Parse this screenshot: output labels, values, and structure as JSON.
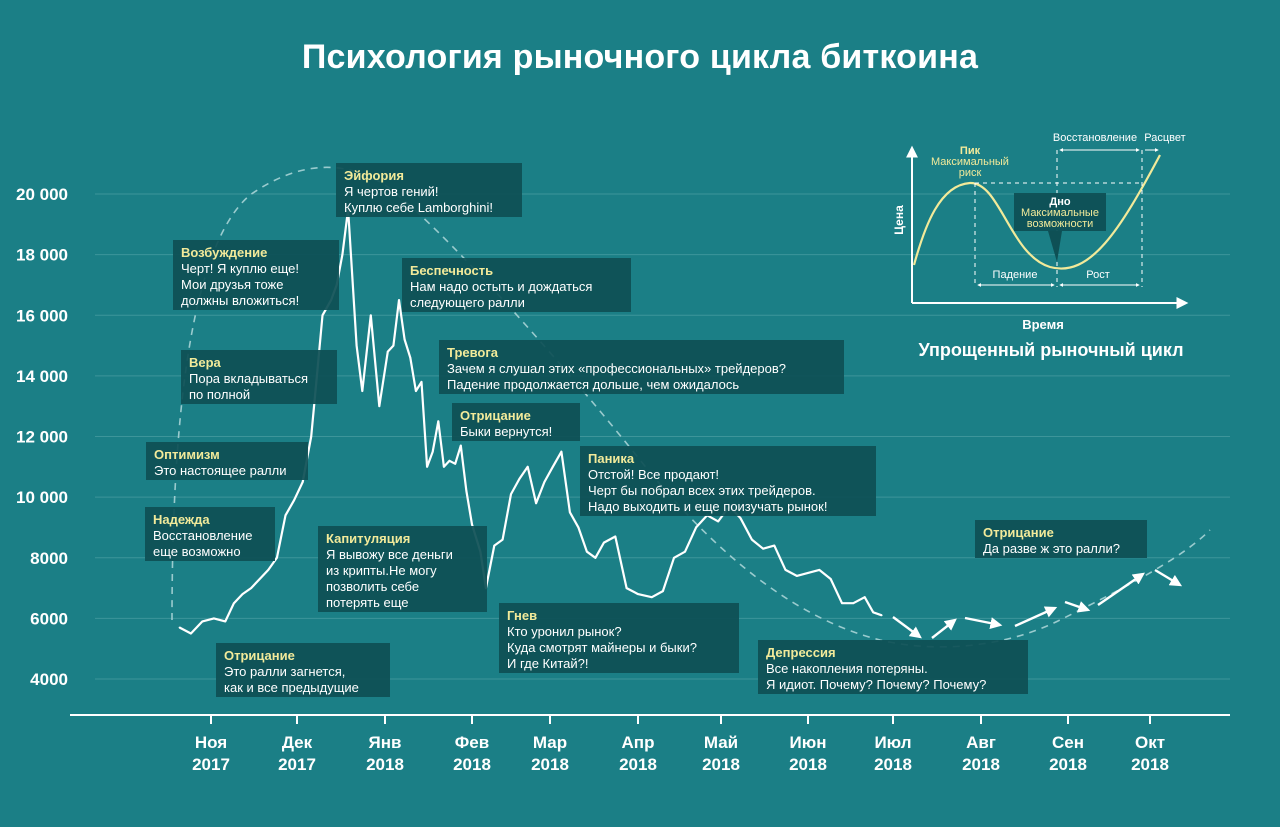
{
  "title": "Психология рыночного цикла биткоина",
  "chart_data": {
    "type": "line",
    "title": "Психология рыночного цикла биткоина",
    "xlabel": "",
    "ylabel": "",
    "y_ticks": [
      "4000",
      "6000",
      "8000",
      "10 000",
      "12 000",
      "14 000",
      "16 000",
      "18 000",
      "20 000"
    ],
    "y_tick_values": [
      4000,
      6000,
      8000,
      10000,
      12000,
      14000,
      16000,
      18000,
      20000
    ],
    "ylim": [
      3000,
      21000
    ],
    "months": [
      {
        "name": "Ноя",
        "year": "2017"
      },
      {
        "name": "Дек",
        "year": "2017"
      },
      {
        "name": "Янв",
        "year": "2018"
      },
      {
        "name": "Фев",
        "year": "2018"
      },
      {
        "name": "Мар",
        "year": "2018"
      },
      {
        "name": "Апр",
        "year": "2018"
      },
      {
        "name": "Май",
        "year": "2018"
      },
      {
        "name": "Июн",
        "year": "2018"
      },
      {
        "name": "Июл",
        "year": "2018"
      },
      {
        "name": "Авг",
        "year": "2018"
      },
      {
        "name": "Сен",
        "year": "2018"
      },
      {
        "name": "Окт",
        "year": "2018"
      }
    ],
    "grid": true,
    "series": [
      {
        "x": [
          "2017-10-21",
          "2017-10-25",
          "2017-10-29",
          "2017-11-02",
          "2017-11-06",
          "2017-11-09",
          "2017-11-12",
          "2017-11-15",
          "2017-11-18",
          "2017-11-21",
          "2017-11-24",
          "2017-11-27",
          "2017-11-30",
          "2017-12-03",
          "2017-12-06",
          "2017-12-08",
          "2017-12-10",
          "2017-12-13",
          "2017-12-15",
          "2017-12-17",
          "2017-12-19",
          "2017-12-22",
          "2017-12-24",
          "2017-12-27",
          "2017-12-30",
          "2018-01-02",
          "2018-01-04",
          "2018-01-06",
          "2018-01-08",
          "2018-01-10",
          "2018-01-12",
          "2018-01-14",
          "2018-01-16",
          "2018-01-18",
          "2018-01-20",
          "2018-01-22",
          "2018-01-24",
          "2018-01-26",
          "2018-01-28",
          "2018-01-30",
          "2018-02-01",
          "2018-02-04",
          "2018-02-06",
          "2018-02-09",
          "2018-02-12",
          "2018-02-15",
          "2018-02-18",
          "2018-02-21",
          "2018-02-24",
          "2018-02-27",
          "2018-03-02",
          "2018-03-05",
          "2018-03-08",
          "2018-03-11",
          "2018-03-14",
          "2018-03-17",
          "2018-03-20",
          "2018-03-24",
          "2018-03-28",
          "2018-04-01",
          "2018-04-06",
          "2018-04-10",
          "2018-04-14",
          "2018-04-18",
          "2018-04-22",
          "2018-04-26",
          "2018-04-30",
          "2018-05-04",
          "2018-05-08",
          "2018-05-12",
          "2018-05-16",
          "2018-05-20",
          "2018-05-24",
          "2018-05-28",
          "2018-06-01",
          "2018-06-05",
          "2018-06-09",
          "2018-06-13",
          "2018-06-17",
          "2018-06-21",
          "2018-06-24",
          "2018-06-27"
        ],
        "values": [
          5700,
          5500,
          5900,
          6000,
          5900,
          6500,
          6800,
          7000,
          7300,
          7600,
          8000,
          9400,
          9900,
          10500,
          12000,
          14000,
          16000,
          16500,
          17000,
          18000,
          19500,
          15000,
          13500,
          16000,
          13000,
          14800,
          15000,
          16500,
          15200,
          14600,
          13500,
          13800,
          11000,
          11500,
          12500,
          11000,
          11200,
          11100,
          11700,
          10200,
          9100,
          8200,
          7000,
          8400,
          8600,
          10100,
          10600,
          11000,
          9800,
          10500,
          11000,
          11500,
          9500,
          9000,
          8200,
          8000,
          8500,
          8700,
          7000,
          6800,
          6700,
          6900,
          8000,
          8200,
          9000,
          9400,
          9200,
          9700,
          9300,
          8600,
          8300,
          8400,
          7600,
          7400,
          7500,
          7600,
          7300,
          6500,
          6500,
          6700,
          6200,
          6100
        ]
      }
    ],
    "annotations": [
      {
        "title": "Надежда",
        "lines": [
          "Восстановление",
          "еще возможно"
        ]
      },
      {
        "title": "Отрицание",
        "lines": [
          "Это ралли загнется,",
          "как и все предыдущие"
        ]
      },
      {
        "title": "Оптимизм",
        "lines": [
          "Это настоящее ралли"
        ]
      },
      {
        "title": "Вера",
        "lines": [
          "Пора вкладываться",
          "по полной"
        ]
      },
      {
        "title": "Возбуждение",
        "lines": [
          "Черт! Я куплю еще!",
          "Мои друзья тоже",
          "должны вложиться!"
        ]
      },
      {
        "title": "Эйфория",
        "lines": [
          "Я чертов гений!",
          "Куплю себе Lamborghini!"
        ]
      },
      {
        "title": "Беспечность",
        "lines": [
          "Нам надо остыть и дождаться",
          "следующего ралли"
        ]
      },
      {
        "title": "Тревога",
        "lines": [
          "Зачем я слушал этих «профессиональных» трейдеров?",
          "Падение продолжается дольше, чем ожидалось"
        ]
      },
      {
        "title": "Отрицание",
        "lines": [
          "Быки вернутся!"
        ]
      },
      {
        "title": "Капитуляция",
        "lines": [
          "Я вывожу все деньги",
          "из крипты.Не могу",
          "позволить себе",
          "потерять еще"
        ]
      },
      {
        "title": "Гнев",
        "lines": [
          "Кто уронил рынок?",
          "Куда смотрят майнеры и быки?",
          "И где Китай?!"
        ]
      },
      {
        "title": "Паника",
        "lines": [
          "Отстой! Все продают!",
          "Черт бы побрал всех этих трейдеров.",
          "Надо выходить и еще поизучать рынок!"
        ]
      },
      {
        "title": "Депрессия",
        "lines": [
          "Все накопления потеряны.",
          "Я идиот. Почему? Почему? Почему?"
        ]
      },
      {
        "title": "Отрицание",
        "lines": [
          "Да разве ж это ралли?"
        ]
      }
    ]
  },
  "inset": {
    "title": "Упрощенный рыночный цикл",
    "x_label": "Время",
    "y_label": "Цена",
    "peak_title": "Пик",
    "peak_sub": [
      "Максимальный",
      "риск"
    ],
    "bottom_title": "Дно",
    "bottom_sub": [
      "Максимальные",
      "возможности"
    ],
    "recovery_label": "Восстановление",
    "flourish_label": "Расцвет",
    "fall_label": "Падение",
    "growth_label": "Рост"
  },
  "colors": {
    "background": "#1b7f86",
    "box": "#0e5055",
    "box_title": "#f2ea9a",
    "line": "#ffffff",
    "curve": "#f2ea9a",
    "grid": "#5aa7ac"
  }
}
